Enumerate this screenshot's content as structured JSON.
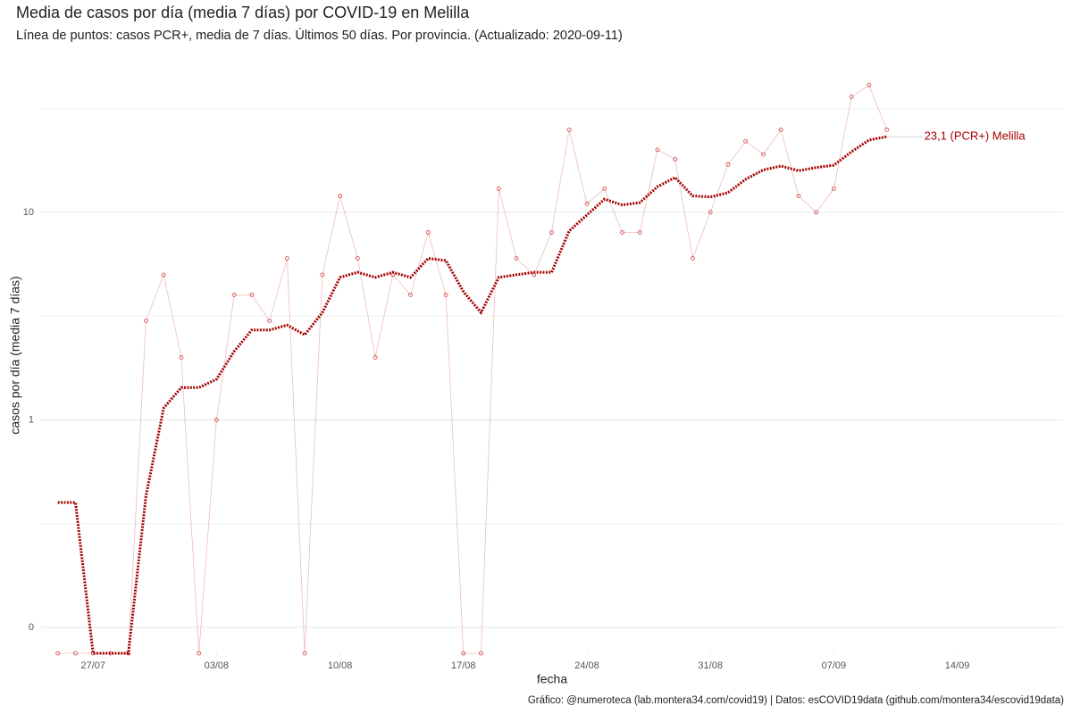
{
  "chart_data": {
    "type": "line",
    "log_y": true,
    "title": "Media de casos por día (media 7 días) por COVID-19 en Melilla",
    "subtitle": "Línea de puntos: casos PCR+, media de 7 días. Últimos 50 días. Por provincia. (Actualizado: 2020-09-11)",
    "xlabel": "fecha",
    "ylabel": "casos por día (media 7 días)",
    "caption": "Gráfico: @numeroteca (lab.montera34.com/covid19) | Datos: esCOVID19data (github.com/montera34/escovid19data)",
    "annotation": "23,1 (PCR+) Melilla",
    "x": [
      "25/07",
      "26/07",
      "27/07",
      "28/07",
      "29/07",
      "30/07",
      "31/07",
      "01/08",
      "02/08",
      "03/08",
      "04/08",
      "05/08",
      "06/08",
      "07/08",
      "08/08",
      "09/08",
      "10/08",
      "11/08",
      "12/08",
      "13/08",
      "14/08",
      "15/08",
      "16/08",
      "17/08",
      "18/08",
      "19/08",
      "20/08",
      "21/08",
      "22/08",
      "23/08",
      "24/08",
      "25/08",
      "26/08",
      "27/08",
      "28/08",
      "29/08",
      "30/08",
      "31/08",
      "01/09",
      "02/09",
      "03/09",
      "04/09",
      "05/09",
      "06/09",
      "07/09",
      "08/09",
      "09/09",
      "10/09"
    ],
    "series": [
      {
        "name": "casos PCR+",
        "color": "#d04040",
        "style": "points",
        "values": [
          0,
          0,
          0,
          0,
          0,
          3,
          5,
          2,
          0,
          1,
          4,
          4,
          3,
          6,
          0,
          5,
          12,
          6,
          2,
          5,
          4,
          8,
          4,
          0,
          0,
          13,
          6,
          5,
          8,
          25,
          11,
          13,
          8,
          8,
          20,
          18,
          6,
          10,
          17,
          22,
          19,
          25,
          12,
          10,
          13,
          36,
          41,
          25
        ]
      },
      {
        "name": "media 7 días",
        "color": "#a50000",
        "style": "dotted",
        "values": [
          0.4,
          0.4,
          0,
          0,
          0,
          0.43,
          1.14,
          1.43,
          1.43,
          1.57,
          2.14,
          2.71,
          2.71,
          2.86,
          2.57,
          3.29,
          4.86,
          5.14,
          4.86,
          5.14,
          4.86,
          6,
          5.86,
          4.14,
          3.29,
          4.86,
          5,
          5.14,
          5.14,
          8.14,
          9.71,
          11.57,
          10.86,
          11.14,
          13.29,
          14.71,
          12,
          11.86,
          12.43,
          14.43,
          16,
          16.71,
          15.86,
          16.43,
          16.86,
          19.57,
          22.29,
          23.14
        ]
      }
    ],
    "xlim": [
      "24/07",
      "20/09"
    ],
    "xticks": [
      "27/07",
      "03/08",
      "10/08",
      "17/08",
      "24/08",
      "31/08",
      "07/09",
      "14/09"
    ],
    "ylim": [
      0.075,
      45
    ],
    "yticks": [
      {
        "value": 0.1,
        "label": "0"
      },
      1,
      10
    ],
    "yminorticks": [
      0.316,
      3.16,
      31.6
    ],
    "grid": true
  }
}
